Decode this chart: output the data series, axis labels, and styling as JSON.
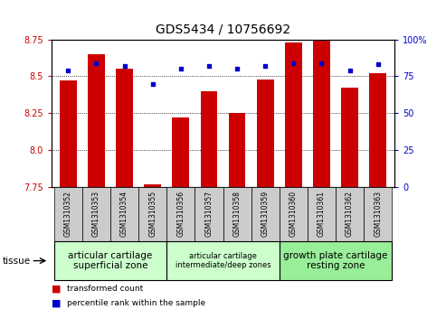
{
  "title": "GDS5434 / 10756692",
  "samples": [
    "GSM1310352",
    "GSM1310353",
    "GSM1310354",
    "GSM1310355",
    "GSM1310356",
    "GSM1310357",
    "GSM1310358",
    "GSM1310359",
    "GSM1310360",
    "GSM1310361",
    "GSM1310362",
    "GSM1310363"
  ],
  "red_values": [
    8.47,
    8.65,
    8.55,
    7.77,
    8.22,
    8.4,
    8.25,
    8.48,
    8.73,
    8.75,
    8.42,
    8.52
  ],
  "blue_values": [
    79,
    84,
    82,
    70,
    80,
    82,
    80,
    82,
    84,
    84,
    79,
    83
  ],
  "ylim_left": [
    7.75,
    8.75
  ],
  "ylim_right": [
    0,
    100
  ],
  "yticks_left": [
    7.75,
    8.0,
    8.25,
    8.5,
    8.75
  ],
  "yticks_right": [
    0,
    25,
    50,
    75,
    100
  ],
  "bar_color": "#cc0000",
  "dot_color": "#0000cc",
  "group_labels": [
    "articular cartilage\nsuperficial zone",
    "articular cartilage\nintermediate/deep zones",
    "growth plate cartilage\nresting zone"
  ],
  "group_ranges": [
    [
      0,
      3
    ],
    [
      4,
      7
    ],
    [
      8,
      11
    ]
  ],
  "group_colors": [
    "#ccffcc",
    "#ccffcc",
    "#99ee99"
  ],
  "group_fontsizes": [
    7.5,
    6.0,
    7.5
  ],
  "legend_red": "transformed count",
  "legend_blue": "percentile rank within the sample",
  "tissue_label": "tissue",
  "bar_color_left": "#cc0000",
  "tick_color_right": "#0000cc",
  "sample_box_color": "#cccccc",
  "title_fontsize": 10
}
